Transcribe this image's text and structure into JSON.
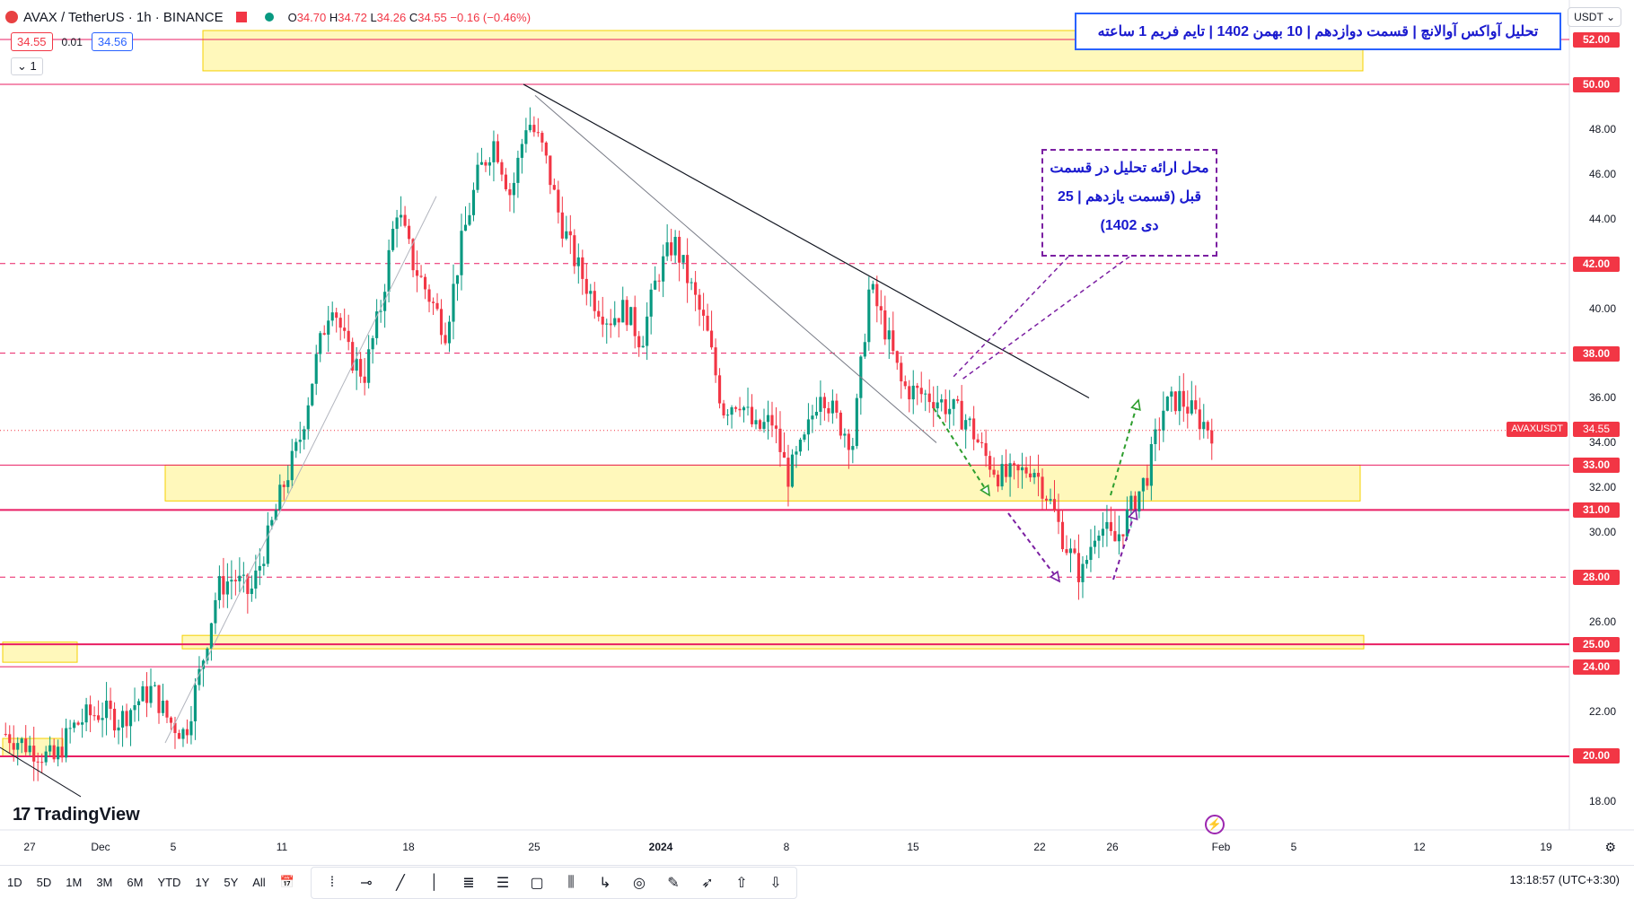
{
  "header": {
    "symbol_title": "AVAX / TetherUS · 1h · BINANCE",
    "ohlc": {
      "o_label": "O",
      "o": "34.70",
      "h_label": "H",
      "h": "34.72",
      "l_label": "L",
      "l": "34.26",
      "c_label": "C",
      "c": "34.55",
      "change": "−0.16 (−0.46%)"
    },
    "sell_price": "34.55",
    "spread": "0.01",
    "buy_price": "34.56",
    "indicator_count": "1",
    "currency": "USDT"
  },
  "annotations": {
    "title": "تحلیل آواکس آوالانچ | قسمت دوازدهم | 10 بهمن 1402 | تایم فریم 1 ساعته",
    "note_lines": [
      "محل ارائه تحلیل در قسمت",
      "قبل (قسمت یازدهم | 25",
      "دی 1402)"
    ]
  },
  "price_axis": {
    "labels": [
      "48.00",
      "46.00",
      "44.00",
      "40.00",
      "36.00",
      "34.00",
      "32.00",
      "30.00",
      "26.00",
      "22.00",
      "18.00"
    ],
    "level_tags": [
      "52.00",
      "50.00",
      "42.00",
      "38.00",
      "33.00",
      "31.00",
      "28.00",
      "25.00",
      "24.00",
      "20.00"
    ],
    "current_symbol": "AVAXUSDT",
    "current_price": "34.55"
  },
  "time_axis": {
    "ticks": [
      "27",
      "Dec",
      "5",
      "11",
      "18",
      "25",
      "2024",
      "8",
      "15",
      "22",
      "26",
      "Feb",
      "5",
      "12",
      "19"
    ]
  },
  "chart_data": {
    "type": "candlestick",
    "symbol": "AVAXUSDT",
    "interval": "1h",
    "y_range": [
      16.5,
      53.5
    ],
    "x_ticks": [
      "27",
      "Dec",
      "5",
      "11",
      "18",
      "25",
      "2024",
      "8",
      "15",
      "22",
      "26",
      "Feb",
      "5",
      "12",
      "19"
    ],
    "horizontal_levels": [
      52,
      50,
      42,
      38,
      33,
      31,
      28,
      25,
      24,
      20
    ],
    "dashed_levels": [
      42,
      38,
      28
    ],
    "zones": [
      {
        "from": 50.6,
        "to": 52.4
      },
      {
        "from": 31.4,
        "to": 33.0
      },
      {
        "from": 24.2,
        "to": 25.1
      },
      {
        "from": 24.8,
        "to": 25.4
      },
      {
        "from": 20.0,
        "to": 20.8
      }
    ],
    "approx_closes": [
      21.0,
      20.6,
      20.2,
      19.8,
      21.2,
      21.8,
      22.0,
      21.6,
      22.4,
      23.0,
      21.6,
      21.0,
      24.0,
      27.5,
      28.0,
      27.2,
      29.5,
      32.0,
      34.0,
      37.5,
      40.5,
      38.0,
      37.0,
      40.0,
      44.5,
      42.0,
      40.5,
      39.0,
      43.0,
      46.0,
      47.5,
      45.0,
      48.5,
      47.0,
      44.0,
      42.0,
      40.5,
      39.5,
      40.0,
      38.5,
      41.5,
      43.0,
      41.0,
      39.0,
      35.5,
      36.0,
      34.5,
      35.0,
      32.5,
      34.0,
      36.5,
      35.0,
      34.0,
      41.0,
      39.0,
      36.5,
      36.2,
      36.0,
      35.5,
      35.0,
      33.5,
      32.5,
      32.5,
      33.0,
      31.5,
      29.5,
      28.0,
      30.5,
      29.5,
      31.0,
      32.5,
      35.5,
      36.0,
      35.2,
      34.55
    ],
    "last_price": 34.55
  },
  "range_buttons": [
    "1D",
    "5D",
    "1M",
    "3M",
    "6M",
    "YTD",
    "1Y",
    "5Y",
    "All"
  ],
  "clock": "13:18:57 (UTC+3:30)",
  "logo_text": "TradingView"
}
